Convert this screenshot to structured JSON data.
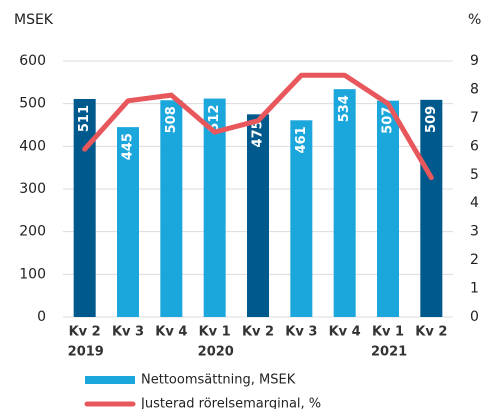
{
  "chart_data": {
    "type": "bar-line",
    "y_label": "MSEK",
    "y2_label": "%",
    "categories": [
      "Kv 2",
      "Kv 3",
      "Kv 4",
      "Kv 1",
      "Kv 2",
      "Kv 3",
      "Kv 4",
      "Kv 1",
      "Kv 2"
    ],
    "years": [
      "2019",
      null,
      null,
      "2020",
      null,
      null,
      null,
      "2021",
      null
    ],
    "series": [
      {
        "name": "Nettoomsättning, MSEK",
        "color": "#1ba6dc",
        "colors": [
          "#00598c",
          "#1ba6dc",
          "#1ba6dc",
          "#1ba6dc",
          "#00598c",
          "#1ba6dc",
          "#1ba6dc",
          "#1ba6dc",
          "#00598c"
        ],
        "values": [
          511,
          445,
          508,
          512,
          475,
          461,
          534,
          507,
          509
        ]
      },
      {
        "name": "Justerad rörelsemarginal, %",
        "color": "#e8575c",
        "axis": "y2",
        "values": [
          5.9,
          7.6,
          7.8,
          6.5,
          6.9,
          8.5,
          8.5,
          7.5,
          4.9
        ]
      }
    ],
    "ylim": [
      0,
      600
    ],
    "yticks": [
      0,
      100,
      200,
      300,
      400,
      500,
      600
    ],
    "y2lim": [
      0,
      9
    ],
    "y2ticks": [
      0,
      1,
      2,
      3,
      4,
      5,
      6,
      7,
      8,
      9
    ],
    "grid": true
  }
}
